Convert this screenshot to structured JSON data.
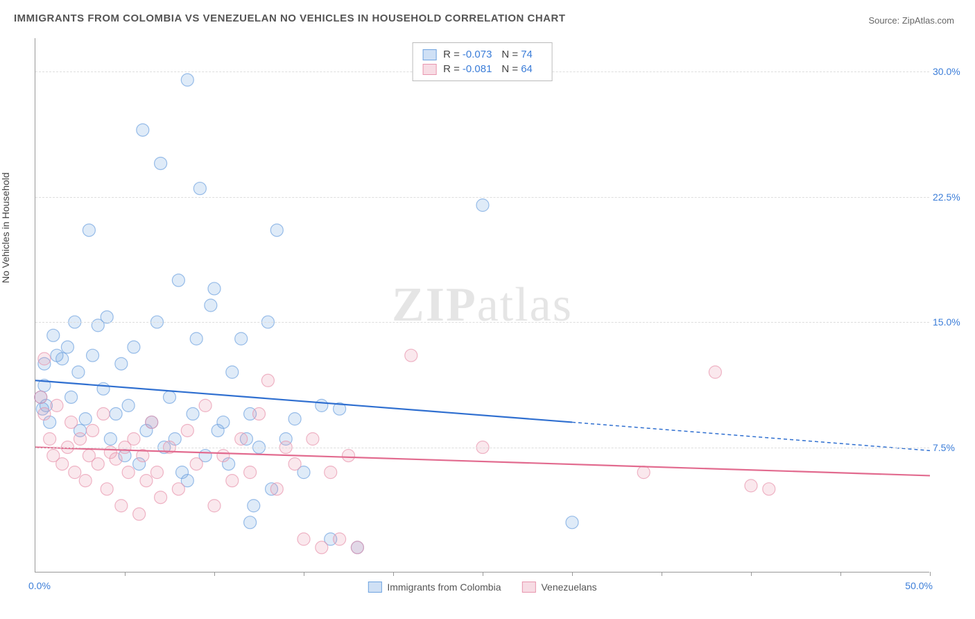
{
  "title": "IMMIGRANTS FROM COLOMBIA VS VENEZUELAN NO VEHICLES IN HOUSEHOLD CORRELATION CHART",
  "source": "Source: ZipAtlas.com",
  "ylabel": "No Vehicles in Household",
  "watermark_bold": "ZIP",
  "watermark_light": "atlas",
  "xaxis_min_label": "0.0%",
  "xaxis_max_label": "50.0%",
  "chart": {
    "type": "scatter",
    "xlim": [
      0,
      50
    ],
    "ylim": [
      0,
      32
    ],
    "yticks": [
      7.5,
      15.0,
      22.5,
      30.0
    ],
    "ytick_labels": [
      "7.5%",
      "15.0%",
      "22.5%",
      "30.0%"
    ],
    "xticks_minor": [
      5,
      10,
      15,
      20,
      25,
      30,
      35,
      40,
      45,
      50
    ],
    "background_color": "#ffffff",
    "grid_color": "#dddddd",
    "marker_radius": 9,
    "marker_fill_opacity": 0.22,
    "marker_stroke_opacity": 0.7,
    "line_width": 2.2
  },
  "series": [
    {
      "name": "Immigrants from Colombia",
      "color": "#6fa3e0",
      "line_color": "#2f6fd0",
      "R": "-0.073",
      "N": "74",
      "trend_solid": {
        "x1": 0,
        "y1": 11.5,
        "x2": 30,
        "y2": 9.0
      },
      "trend_dash": {
        "x1": 30,
        "y1": 9.0,
        "x2": 50,
        "y2": 7.3
      },
      "points": [
        [
          0.3,
          10.5
        ],
        [
          0.4,
          9.8
        ],
        [
          0.5,
          11.2
        ],
        [
          0.5,
          12.5
        ],
        [
          0.6,
          10.0
        ],
        [
          0.8,
          9.0
        ],
        [
          1.0,
          14.2
        ],
        [
          1.2,
          13.0
        ],
        [
          1.5,
          12.8
        ],
        [
          1.8,
          13.5
        ],
        [
          2.0,
          10.5
        ],
        [
          2.2,
          15.0
        ],
        [
          2.4,
          12.0
        ],
        [
          2.5,
          8.5
        ],
        [
          2.8,
          9.2
        ],
        [
          3.0,
          20.5
        ],
        [
          3.2,
          13.0
        ],
        [
          3.5,
          14.8
        ],
        [
          3.8,
          11.0
        ],
        [
          4.0,
          15.3
        ],
        [
          4.2,
          8.0
        ],
        [
          4.5,
          9.5
        ],
        [
          4.8,
          12.5
        ],
        [
          5.0,
          7.0
        ],
        [
          5.2,
          10.0
        ],
        [
          5.5,
          13.5
        ],
        [
          5.8,
          6.5
        ],
        [
          6.0,
          26.5
        ],
        [
          6.2,
          8.5
        ],
        [
          6.5,
          9.0
        ],
        [
          6.8,
          15.0
        ],
        [
          7.0,
          24.5
        ],
        [
          7.2,
          7.5
        ],
        [
          7.5,
          10.5
        ],
        [
          7.8,
          8.0
        ],
        [
          8.0,
          17.5
        ],
        [
          8.2,
          6.0
        ],
        [
          8.5,
          29.5
        ],
        [
          8.8,
          9.5
        ],
        [
          9.0,
          14.0
        ],
        [
          9.2,
          23.0
        ],
        [
          9.5,
          7.0
        ],
        [
          9.8,
          16.0
        ],
        [
          8.5,
          5.5
        ],
        [
          10.0,
          17.0
        ],
        [
          10.2,
          8.5
        ],
        [
          10.5,
          9.0
        ],
        [
          10.8,
          6.5
        ],
        [
          11.0,
          12.0
        ],
        [
          11.5,
          14.0
        ],
        [
          11.8,
          8.0
        ],
        [
          12.0,
          9.5
        ],
        [
          12.2,
          4.0
        ],
        [
          12.5,
          7.5
        ],
        [
          13.0,
          15.0
        ],
        [
          13.2,
          5.0
        ],
        [
          13.5,
          20.5
        ],
        [
          14.0,
          8.0
        ],
        [
          14.5,
          9.2
        ],
        [
          15.0,
          6.0
        ],
        [
          12.0,
          3.0
        ],
        [
          16.0,
          10.0
        ],
        [
          16.5,
          2.0
        ],
        [
          17.0,
          9.8
        ],
        [
          18.0,
          1.5
        ],
        [
          25.0,
          22.0
        ],
        [
          30.0,
          3.0
        ]
      ]
    },
    {
      "name": "Venezuelans",
      "color": "#e895ae",
      "line_color": "#e26b8f",
      "R": "-0.081",
      "N": "64",
      "trend_solid": {
        "x1": 0,
        "y1": 7.5,
        "x2": 50,
        "y2": 5.8
      },
      "trend_dash": null,
      "points": [
        [
          0.3,
          10.5
        ],
        [
          0.5,
          12.8
        ],
        [
          0.5,
          9.5
        ],
        [
          0.8,
          8.0
        ],
        [
          1.0,
          7.0
        ],
        [
          1.2,
          10.0
        ],
        [
          1.5,
          6.5
        ],
        [
          1.8,
          7.5
        ],
        [
          2.0,
          9.0
        ],
        [
          2.2,
          6.0
        ],
        [
          2.5,
          8.0
        ],
        [
          2.8,
          5.5
        ],
        [
          3.0,
          7.0
        ],
        [
          3.2,
          8.5
        ],
        [
          3.5,
          6.5
        ],
        [
          3.8,
          9.5
        ],
        [
          4.0,
          5.0
        ],
        [
          4.2,
          7.2
        ],
        [
          4.5,
          6.8
        ],
        [
          4.8,
          4.0
        ],
        [
          5.0,
          7.5
        ],
        [
          5.2,
          6.0
        ],
        [
          5.5,
          8.0
        ],
        [
          5.8,
          3.5
        ],
        [
          6.0,
          7.0
        ],
        [
          6.2,
          5.5
        ],
        [
          6.5,
          9.0
        ],
        [
          6.8,
          6.0
        ],
        [
          7.0,
          4.5
        ],
        [
          7.5,
          7.5
        ],
        [
          8.0,
          5.0
        ],
        [
          8.5,
          8.5
        ],
        [
          9.0,
          6.5
        ],
        [
          9.5,
          10.0
        ],
        [
          10.0,
          4.0
        ],
        [
          10.5,
          7.0
        ],
        [
          11.0,
          5.5
        ],
        [
          11.5,
          8.0
        ],
        [
          12.0,
          6.0
        ],
        [
          12.5,
          9.5
        ],
        [
          13.0,
          11.5
        ],
        [
          13.5,
          5.0
        ],
        [
          14.0,
          7.5
        ],
        [
          14.5,
          6.5
        ],
        [
          15.0,
          2.0
        ],
        [
          15.5,
          8.0
        ],
        [
          16.0,
          1.5
        ],
        [
          16.5,
          6.0
        ],
        [
          17.0,
          2.0
        ],
        [
          17.5,
          7.0
        ],
        [
          18.0,
          1.5
        ],
        [
          21.0,
          13.0
        ],
        [
          25.0,
          7.5
        ],
        [
          34.0,
          6.0
        ],
        [
          38.0,
          12.0
        ],
        [
          40.0,
          5.2
        ],
        [
          41.0,
          5.0
        ]
      ]
    }
  ]
}
